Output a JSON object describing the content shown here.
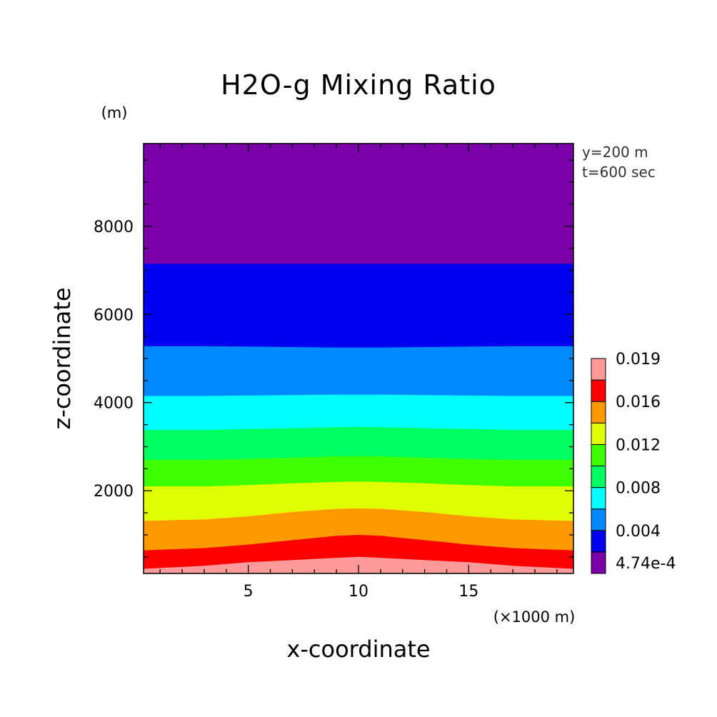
{
  "chart_data": {
    "type": "contour",
    "title": "H2O-g Mixing Ratio",
    "xlabel": "x-coordinate",
    "ylabel": "z-coordinate",
    "x_unit": "(×1000 m)",
    "y_unit": "(m)",
    "info_lines": [
      "y=200 m",
      "t=600 sec"
    ],
    "xlim": [
      0.25,
      19.75
    ],
    "ylim": [
      125,
      9875
    ],
    "x_ticks": [
      5,
      10,
      15
    ],
    "y_ticks": [
      2000,
      4000,
      6000,
      8000
    ],
    "grid": false,
    "legend_position": "right",
    "colorbar": {
      "colors": [
        "#7a00a8",
        "#0000f0",
        "#0088ff",
        "#00ffff",
        "#00ff60",
        "#40ff00",
        "#e0ff00",
        "#ff9900",
        "#ff0000",
        "#ff9a9a"
      ],
      "labels": [
        "4.74e-4",
        "0.004",
        "0.008",
        "0.012",
        "0.016",
        "0.019"
      ]
    },
    "x": [
      0.25,
      3,
      5,
      7,
      9,
      10,
      11,
      13,
      15,
      17,
      19.75
    ],
    "contours": [
      {
        "level": "4.74e-4",
        "z": [
          7150,
          7150,
          7150,
          7150,
          7150,
          7150,
          7150,
          7150,
          7150,
          7150,
          7150
        ]
      },
      {
        "level": "0.002",
        "z": [
          5280,
          5280,
          5270,
          5260,
          5250,
          5250,
          5250,
          5260,
          5270,
          5280,
          5280
        ]
      },
      {
        "level": "0.004",
        "z": [
          4150,
          4150,
          4160,
          4170,
          4180,
          4180,
          4180,
          4170,
          4160,
          4150,
          4150
        ]
      },
      {
        "level": "0.006",
        "z": [
          3380,
          3380,
          3400,
          3420,
          3440,
          3450,
          3440,
          3420,
          3400,
          3380,
          3380
        ]
      },
      {
        "level": "0.008",
        "z": [
          2700,
          2700,
          2720,
          2750,
          2780,
          2780,
          2780,
          2750,
          2720,
          2700,
          2700
        ]
      },
      {
        "level": "0.010",
        "z": [
          2100,
          2100,
          2130,
          2170,
          2200,
          2210,
          2200,
          2170,
          2130,
          2100,
          2100
        ]
      },
      {
        "level": "0.012",
        "z": [
          1320,
          1350,
          1420,
          1520,
          1590,
          1600,
          1590,
          1520,
          1420,
          1350,
          1320
        ]
      },
      {
        "level": "0.014",
        "z": [
          650,
          700,
          780,
          880,
          980,
          1000,
          980,
          880,
          780,
          700,
          650
        ]
      },
      {
        "level": "0.016",
        "z": [
          230,
          300,
          380,
          430,
          480,
          500,
          480,
          430,
          380,
          300,
          230
        ]
      }
    ]
  }
}
